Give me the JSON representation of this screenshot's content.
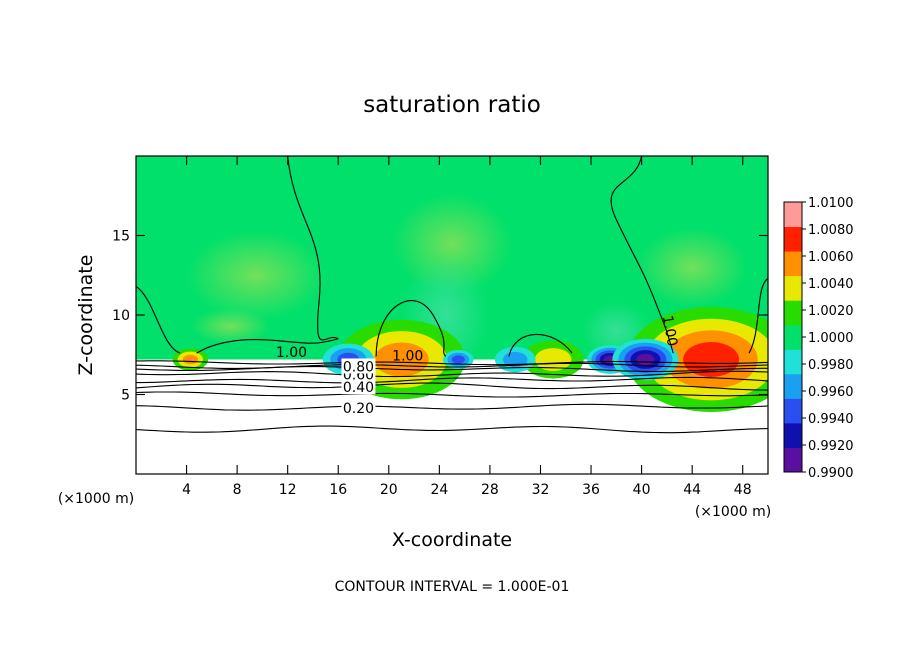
{
  "chart_data": {
    "type": "heatmap",
    "title": "saturation ratio",
    "xlabel": "X-coordinate",
    "ylabel": "Z-coordinate",
    "x_unit": "(×1000 m)",
    "y_unit": "(×1000 m)",
    "xlim": [
      0,
      50
    ],
    "ylim": [
      0,
      20
    ],
    "x_ticks": [
      "4",
      "8",
      "12",
      "16",
      "20",
      "24",
      "28",
      "32",
      "36",
      "40",
      "44",
      "48"
    ],
    "y_ticks": [
      "5",
      "10",
      "15"
    ],
    "colorbar": {
      "range": [
        0.99,
        1.01
      ],
      "ticks": [
        "1.0100",
        "1.0080",
        "1.0060",
        "1.0040",
        "1.0020",
        "1.0000",
        "0.9980",
        "0.9960",
        "0.9940",
        "0.9920",
        "0.9900"
      ],
      "colors": [
        "#5a0fa0",
        "#1010b0",
        "#2a4ef0",
        "#1aa0f0",
        "#20e0d8",
        "#00e06a",
        "#28dc00",
        "#e8e800",
        "#ff9000",
        "#ff2000",
        "#ff9a9a"
      ]
    },
    "contour_labels": [
      "1.00",
      "1.00",
      "1.00",
      "0.20",
      "0.40",
      "0.60",
      "0.80"
    ],
    "cloud_top_height": 7.2,
    "anomalies": [
      {
        "x": 4.3,
        "z_top": 7.9,
        "value": 1.006
      },
      {
        "x": 21.0,
        "z_top": 9.7,
        "value": 1.006
      },
      {
        "x": 33.0,
        "z_top": 8.4,
        "value": 1.004
      },
      {
        "x": 45.5,
        "z_top": 10.5,
        "value": 1.007
      },
      {
        "x": 16.8,
        "z_top": 8.2,
        "value": 0.994
      },
      {
        "x": 25.5,
        "z_top": 7.8,
        "value": 0.995
      },
      {
        "x": 30.0,
        "z_top": 8.0,
        "value": 0.996
      },
      {
        "x": 37.5,
        "z_top": 8.1,
        "value": 0.991
      },
      {
        "x": 40.3,
        "z_top": 8.5,
        "value": 0.99
      }
    ]
  },
  "footer": {
    "contour_interval": "CONTOUR INTERVAL = 1.000E-01"
  }
}
